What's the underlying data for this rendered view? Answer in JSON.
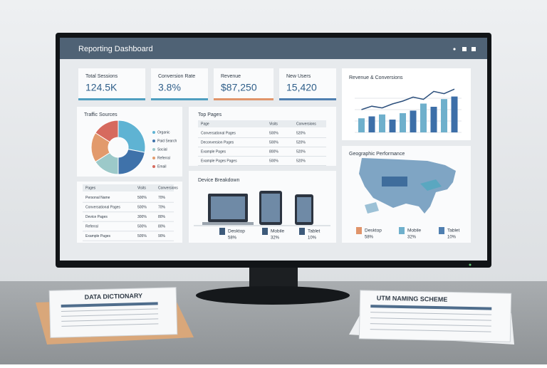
{
  "header": {
    "title": "Reporting Dashboard"
  },
  "kpis": [
    {
      "label": "Total Sessions",
      "value": "124.5K"
    },
    {
      "label": "Conversion Rate",
      "value": "3.8%"
    },
    {
      "label": "Revenue",
      "value": "$87,250"
    },
    {
      "label": "New Users",
      "value": "15,420"
    }
  ],
  "revenue_chart": {
    "title": "Revenue & Conversions",
    "bars": [
      22,
      25,
      28,
      20,
      30,
      34,
      45,
      40,
      52,
      56
    ],
    "line": [
      40,
      46,
      43,
      50,
      55,
      62,
      58,
      72,
      68,
      76
    ]
  },
  "traffic_sources": {
    "title": "Traffic Sources",
    "slices": [
      {
        "name": "Organic",
        "value": 28,
        "color": "#5fb3d3"
      },
      {
        "name": "Paid Search",
        "value": 22,
        "color": "#3f72aa"
      },
      {
        "name": "Social",
        "value": 16,
        "color": "#9cc9c9"
      },
      {
        "name": "Referral",
        "value": 18,
        "color": "#e29a6c"
      },
      {
        "name": "Email",
        "value": 16,
        "color": "#d66a5e"
      }
    ]
  },
  "traffic_table": {
    "headers": [
      "Pages",
      "Visits",
      "Conversions"
    ],
    "rows": [
      [
        "Personal Name",
        "500%",
        "70%"
      ],
      [
        "Conversational Pages",
        "500%",
        "70%"
      ],
      [
        "Device Pages",
        "300%",
        "80%"
      ],
      [
        "Referral",
        "500%",
        "80%"
      ],
      [
        "Example Pages",
        "505%",
        "90%"
      ]
    ]
  },
  "top_pages": {
    "title": "Top Pages",
    "headers": [
      "Page",
      "Visits",
      "Conversions"
    ],
    "rows": [
      [
        "Conversational Pages",
        "500%",
        "520%"
      ],
      [
        "Deconversion Pages",
        "500%",
        "520%"
      ],
      [
        "Example Pages",
        "800%",
        "520%"
      ],
      [
        "Example Pages Pages",
        "500%",
        "520%"
      ]
    ]
  },
  "device": {
    "title": "Device Breakdown",
    "items": [
      {
        "name": "Desktop",
        "share": "58%"
      },
      {
        "name": "Mobile",
        "share": "32%"
      },
      {
        "name": "Tablet",
        "share": "10%"
      }
    ]
  },
  "geo": {
    "title": "Geographic Performance",
    "items": [
      {
        "name": "Desktop",
        "share": "58%"
      },
      {
        "name": "Mobile",
        "share": "32%"
      },
      {
        "name": "Tablet",
        "share": "10%"
      }
    ]
  },
  "documents": {
    "left": "DATA DICTIONARY",
    "right": "UTM NAMING SCHEME"
  }
}
